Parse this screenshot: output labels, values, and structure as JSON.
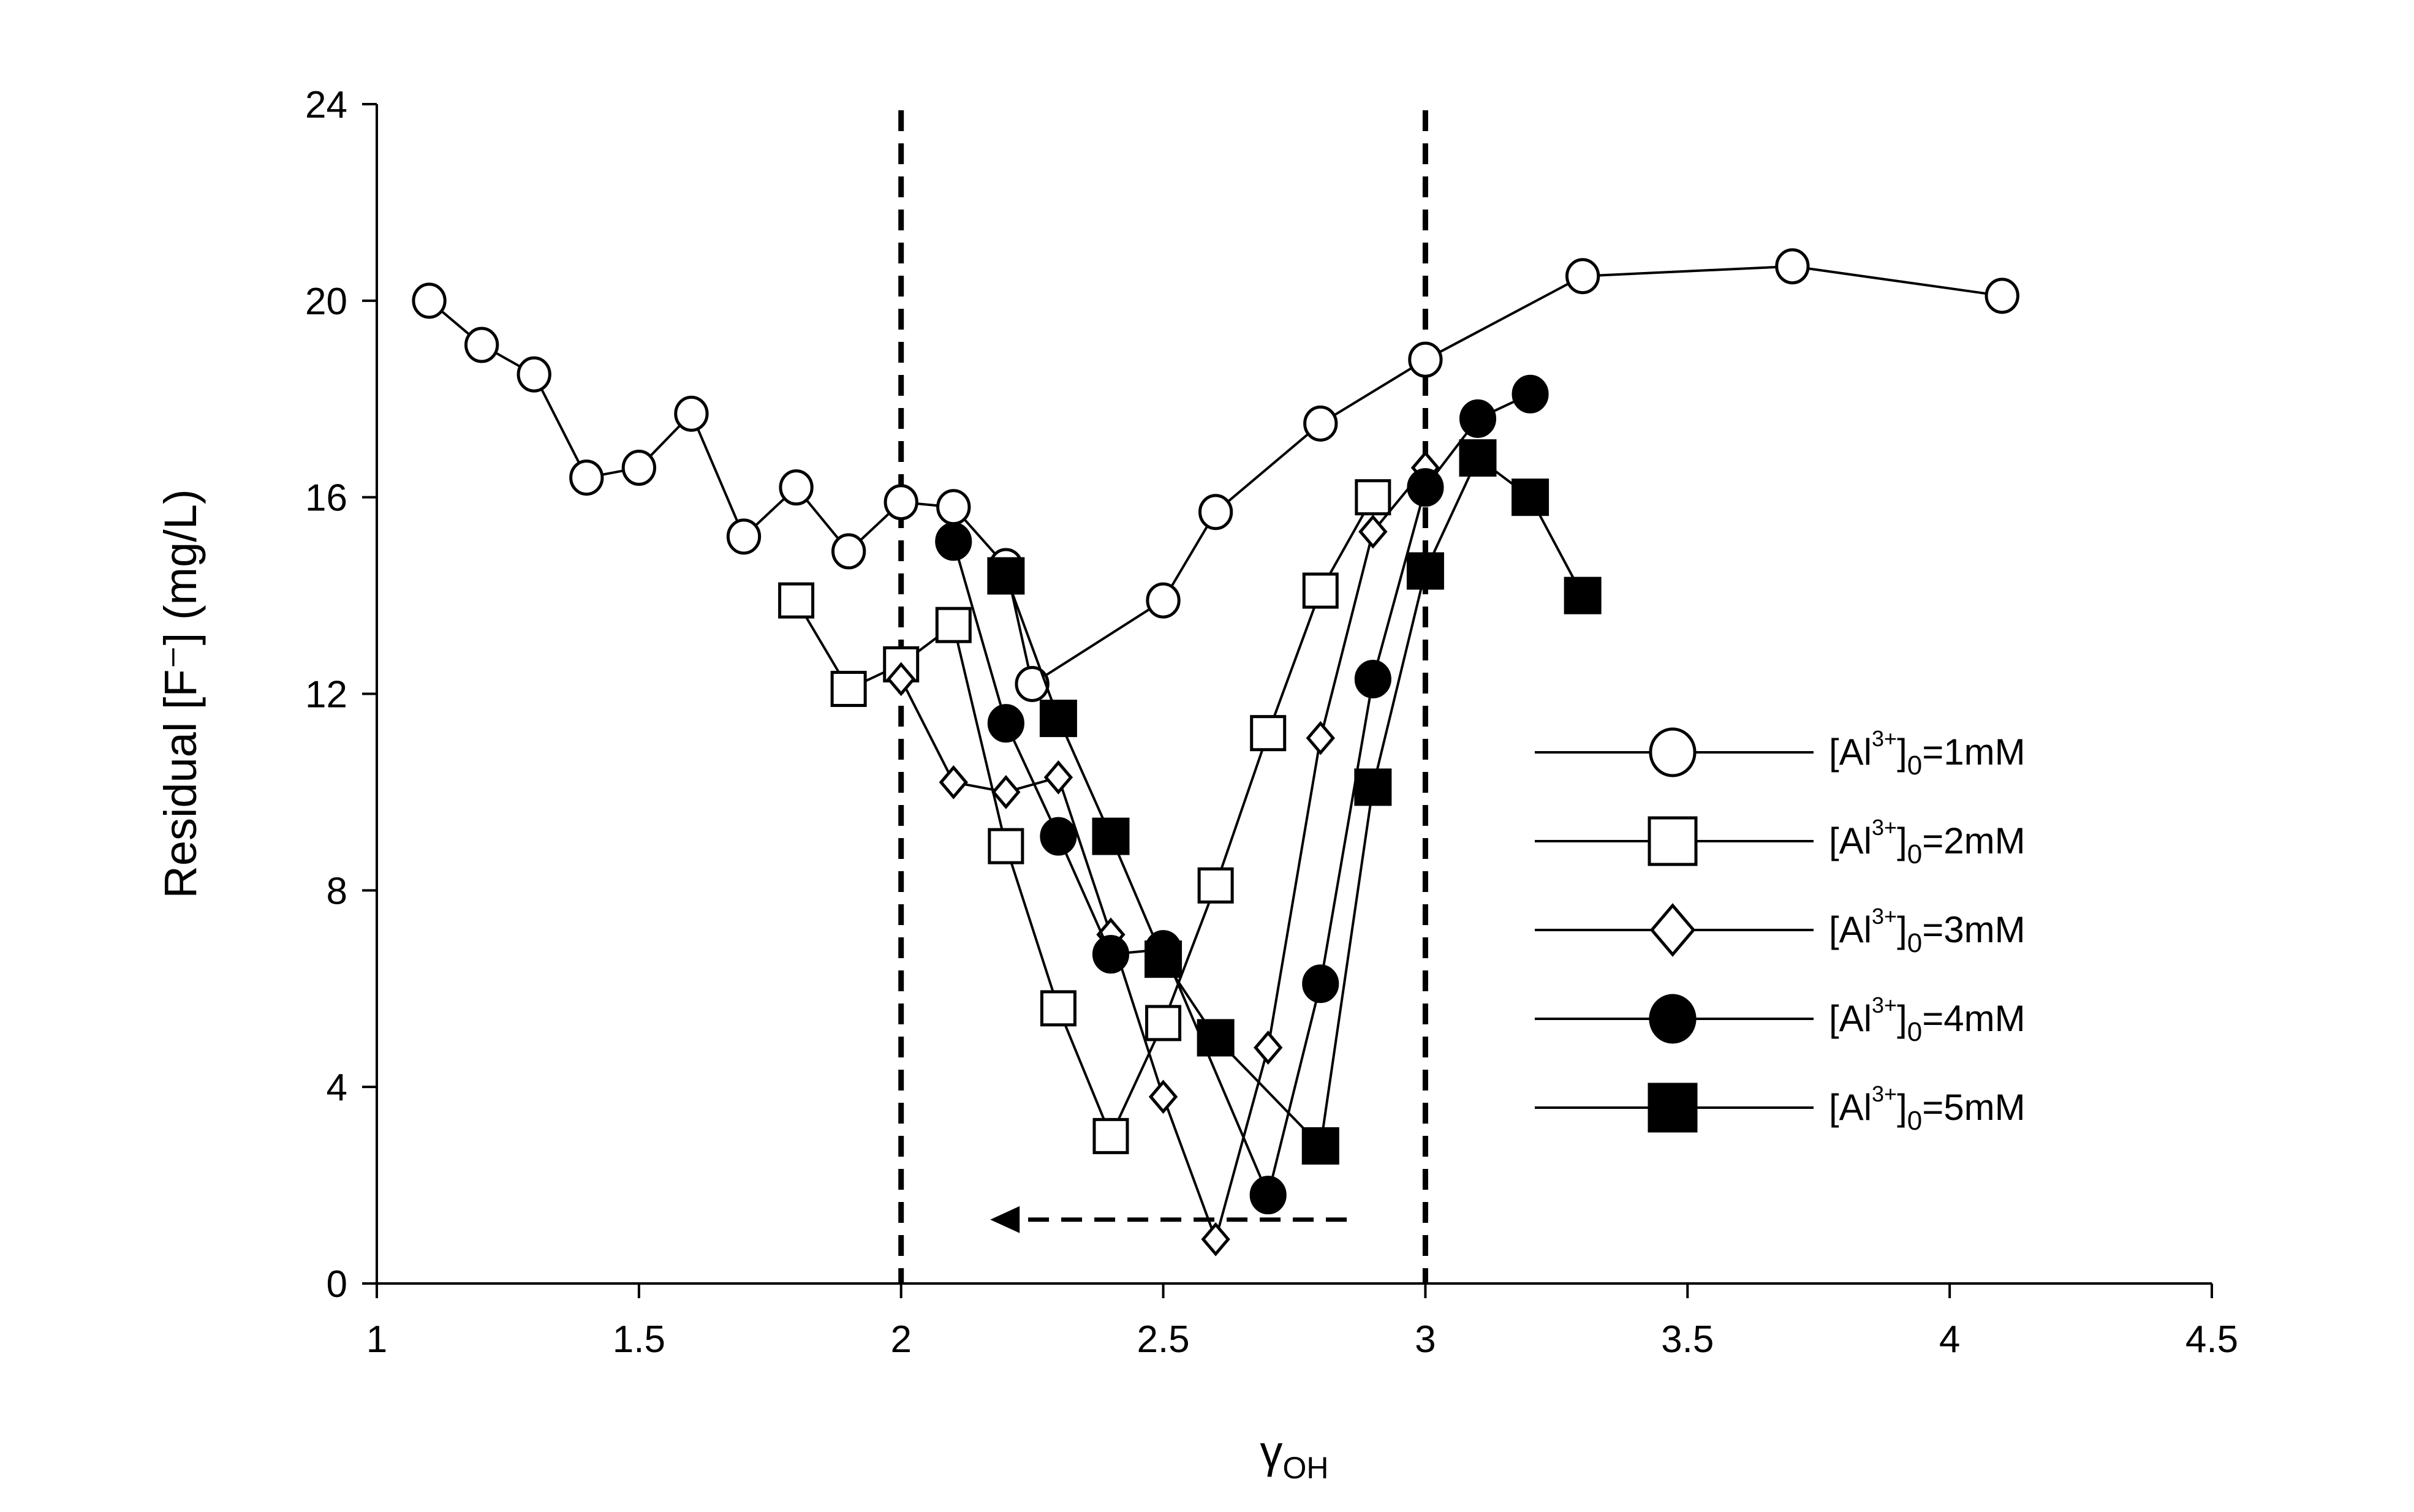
{
  "chart_data": {
    "type": "line",
    "title": "",
    "xlabel": "γ",
    "xlabel_sub": "OH",
    "ylabel": "Residual [F⁻] (mg/L)",
    "xlim": [
      1,
      4.5
    ],
    "ylim": [
      0,
      24
    ],
    "x_ticks": [
      1,
      1.5,
      2,
      2.5,
      3,
      3.5,
      4,
      4.5
    ],
    "y_ticks": [
      0,
      4,
      8,
      12,
      16,
      20,
      24
    ],
    "x_tick_labels": [
      "1",
      "1.5",
      "2",
      "2.5",
      "3",
      "3.5",
      "4",
      "4.5"
    ],
    "y_tick_labels": [
      "0",
      "4",
      "8",
      "12",
      "16",
      "20",
      "24"
    ],
    "grid": false,
    "legend_position": "right",
    "vertical_dashed_lines_x": [
      2,
      3
    ],
    "arrow": {
      "from": [
        2.85,
        1.3
      ],
      "to": [
        2.17,
        1.3
      ],
      "style": "dashed"
    },
    "series": [
      {
        "name": "[Al³⁺]₀=1mM",
        "legend": {
          "pre": "[Al",
          "sup": "3+",
          "mid": "]",
          "sub": "0",
          "post": "=1mM"
        },
        "marker": "open-circle",
        "x": [
          1.1,
          1.2,
          1.3,
          1.4,
          1.5,
          1.6,
          1.7,
          1.8,
          1.9,
          2.0,
          2.1,
          2.2,
          2.25,
          2.5,
          2.6,
          2.8,
          3.0,
          3.3,
          3.7,
          4.1
        ],
        "y": [
          20.0,
          19.1,
          18.5,
          16.4,
          16.6,
          17.7,
          15.2,
          16.2,
          14.9,
          15.9,
          15.8,
          14.6,
          12.2,
          13.9,
          15.7,
          17.5,
          18.8,
          20.5,
          20.7,
          20.1
        ]
      },
      {
        "name": "[Al³⁺]₀=2mM",
        "legend": {
          "pre": "[Al",
          "sup": "3+",
          "mid": "]",
          "sub": "0",
          "post": "=2mM"
        },
        "marker": "open-square",
        "x": [
          1.8,
          1.9,
          2.0,
          2.1,
          2.2,
          2.3,
          2.4,
          2.5,
          2.6,
          2.7,
          2.8,
          2.9
        ],
        "y": [
          13.9,
          12.1,
          12.6,
          13.4,
          8.9,
          5.6,
          3.0,
          5.3,
          8.1,
          11.2,
          14.1,
          16.0
        ]
      },
      {
        "name": "[Al³⁺]₀=3mM",
        "legend": {
          "pre": "[Al",
          "sup": "3+",
          "mid": "]",
          "sub": "0",
          "post": "=3mM"
        },
        "marker": "open-diamond",
        "x": [
          2.0,
          2.1,
          2.2,
          2.3,
          2.4,
          2.5,
          2.6,
          2.7,
          2.8,
          2.9,
          3.0
        ],
        "y": [
          12.3,
          10.2,
          10.0,
          10.3,
          7.1,
          3.8,
          0.9,
          4.8,
          11.1,
          15.3,
          16.6
        ]
      },
      {
        "name": "[Al³⁺]₀=4mM",
        "legend": {
          "pre": "[Al",
          "sup": "3+",
          "mid": "]",
          "sub": "0",
          "post": "=4mM"
        },
        "marker": "filled-circle",
        "x": [
          2.1,
          2.2,
          2.3,
          2.4,
          2.5,
          2.7,
          2.8,
          2.9,
          3.0,
          3.1,
          3.2
        ],
        "y": [
          15.1,
          11.4,
          9.1,
          6.7,
          6.8,
          1.8,
          6.1,
          12.3,
          16.2,
          17.6,
          18.1
        ]
      },
      {
        "name": "[Al³⁺]₀=5mM",
        "legend": {
          "pre": "[Al",
          "sup": "3+",
          "mid": "]",
          "sub": "0",
          "post": "=5mM"
        },
        "marker": "filled-square",
        "x": [
          2.2,
          2.3,
          2.4,
          2.5,
          2.6,
          2.8,
          2.9,
          3.0,
          3.1,
          3.2,
          3.3
        ],
        "y": [
          14.4,
          11.5,
          9.1,
          6.6,
          5.0,
          2.8,
          10.1,
          14.5,
          16.8,
          16.0,
          14.0
        ]
      }
    ]
  }
}
